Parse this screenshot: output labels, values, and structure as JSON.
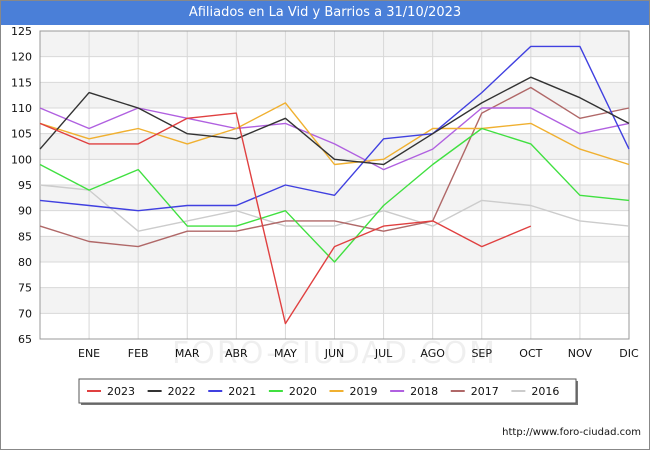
{
  "chart_data": {
    "type": "line",
    "title": "Afiliados en La Vid y Barrios a 31/10/2023",
    "xlabel": "",
    "ylabel": "",
    "ylim": [
      65,
      125
    ],
    "yticks": [
      65,
      70,
      75,
      80,
      85,
      90,
      95,
      100,
      105,
      110,
      115,
      120,
      125
    ],
    "categories": [
      "",
      "ENE",
      "FEB",
      "MAR",
      "ABR",
      "MAY",
      "JUN",
      "JUL",
      "AGO",
      "SEP",
      "OCT",
      "NOV",
      "DIC"
    ],
    "legend_position": "bottom",
    "series": [
      {
        "name": "2023",
        "color": "#e04040",
        "values": [
          107,
          103,
          103,
          108,
          109,
          68,
          83,
          87,
          88,
          83,
          87,
          null,
          null
        ]
      },
      {
        "name": "2022",
        "color": "#333333",
        "values": [
          102,
          113,
          110,
          105,
          104,
          108,
          100,
          99,
          105,
          111,
          116,
          112,
          107
        ]
      },
      {
        "name": "2021",
        "color": "#4040e0",
        "values": [
          92,
          91,
          90,
          91,
          91,
          95,
          93,
          104,
          105,
          113,
          122,
          122,
          102
        ]
      },
      {
        "name": "2020",
        "color": "#40e040",
        "values": [
          99,
          94,
          98,
          87,
          87,
          90,
          80,
          91,
          99,
          106,
          103,
          93,
          92
        ]
      },
      {
        "name": "2019",
        "color": "#f0b030",
        "values": [
          107,
          104,
          106,
          103,
          106,
          111,
          99,
          100,
          106,
          106,
          107,
          102,
          99
        ]
      },
      {
        "name": "2018",
        "color": "#b060e0",
        "values": [
          110,
          106,
          110,
          108,
          106,
          107,
          103,
          98,
          102,
          110,
          110,
          105,
          107
        ]
      },
      {
        "name": "2017",
        "color": "#b06868",
        "values": [
          87,
          84,
          83,
          86,
          86,
          88,
          88,
          86,
          88,
          109,
          114,
          108,
          110
        ]
      },
      {
        "name": "2016",
        "color": "#cccccc",
        "values": [
          95,
          94,
          86,
          88,
          90,
          87,
          87,
          90,
          87,
          92,
          91,
          88,
          87
        ]
      }
    ]
  },
  "watermark": "FORO-CIUDAD.COM",
  "source": "http://www.foro-ciudad.com"
}
